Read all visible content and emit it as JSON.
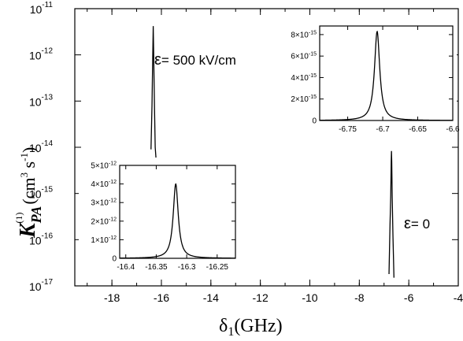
{
  "chart_data": [
    {
      "type": "line",
      "role": "main",
      "xlabel_symbol": "δ",
      "xlabel_sub": "1",
      "xlabel_unit": "(GHz)",
      "ylabel_symbol": "K",
      "ylabel_sub": "PA",
      "ylabel_sup": "(1)",
      "ylabel_unit": "(cm",
      "ylabel_unit_sup": "3",
      "ylabel_unit_tail": " s",
      "ylabel_unit_sup2": "-1",
      "ylabel_close": ")",
      "xlim": [
        -19.5,
        -4
      ],
      "ylim": [
        1e-17,
        1e-11
      ],
      "yscale": "log",
      "xticks": [
        "-18",
        "-16",
        "-14",
        "-12",
        "-10",
        "-8",
        "-6",
        "-4"
      ],
      "yticks": [
        {
          "base": "10",
          "exp": "-11"
        },
        {
          "base": "10",
          "exp": "-12"
        },
        {
          "base": "10",
          "exp": "-13"
        },
        {
          "base": "10",
          "exp": "-14"
        },
        {
          "base": "10",
          "exp": "-15"
        },
        {
          "base": "10",
          "exp": "-16"
        },
        {
          "base": "10",
          "exp": "-17"
        }
      ],
      "series": [
        {
          "x": [
            -16.42,
            -16.38,
            -16.35,
            -16.33,
            -16.31,
            -16.28,
            -16.25,
            -16.22
          ],
          "y": [
            9e-15,
            8e-14,
            9e-13,
            4.2e-12,
            9e-13,
            8e-14,
            1e-14,
            6e-15
          ]
        },
        {
          "x": [
            -6.8,
            -6.76,
            -6.73,
            -6.71,
            -6.7,
            -6.69,
            -6.67,
            -6.64,
            -6.6
          ],
          "y": [
            1.8e-17,
            2e-16,
            9e-16,
            5e-15,
            8.3e-15,
            5e-15,
            8e-16,
            1.2e-16,
            1.5e-17
          ]
        }
      ],
      "annotations": [
        {
          "symbol": "ε",
          "text": "= 500 kV/cm",
          "x": -16.1,
          "y": 7e-13
        },
        {
          "symbol": "ε",
          "text": "= 0",
          "x": -6.6,
          "y": 1.2e-15
        }
      ]
    },
    {
      "type": "line",
      "role": "inset-bottom-left",
      "xlim": [
        -16.41,
        -16.22
      ],
      "ylim": [
        0,
        5e-12
      ],
      "xticks": [
        "-16.4",
        "-16.35",
        "-16.3",
        "-16.25"
      ],
      "yticks": [
        {
          "base": "0",
          "exp": ""
        },
        {
          "base": "1×10",
          "exp": "-12"
        },
        {
          "base": "2×10",
          "exp": "-12"
        },
        {
          "base": "3×10",
          "exp": "-12"
        },
        {
          "base": "4×10",
          "exp": "-12"
        },
        {
          "base": "5×10",
          "exp": "-12"
        }
      ],
      "peak": {
        "x0": -16.318,
        "height": 4e-12,
        "gamma": 0.005
      }
    },
    {
      "type": "line",
      "role": "inset-top-right",
      "xlim": [
        -6.79,
        -6.6
      ],
      "ylim": [
        0,
        8.8e-15
      ],
      "xticks": [
        "-6.75",
        "-6.7",
        "-6.65",
        "-6.6"
      ],
      "yticks": [
        {
          "base": "0",
          "exp": ""
        },
        {
          "base": "2×10",
          "exp": "-15"
        },
        {
          "base": "4×10",
          "exp": "-15"
        },
        {
          "base": "6×10",
          "exp": "-15"
        },
        {
          "base": "8×10",
          "exp": "-15"
        }
      ],
      "peak": {
        "x0": -6.708,
        "height": 8.3e-15,
        "gamma": 0.0045
      }
    }
  ]
}
